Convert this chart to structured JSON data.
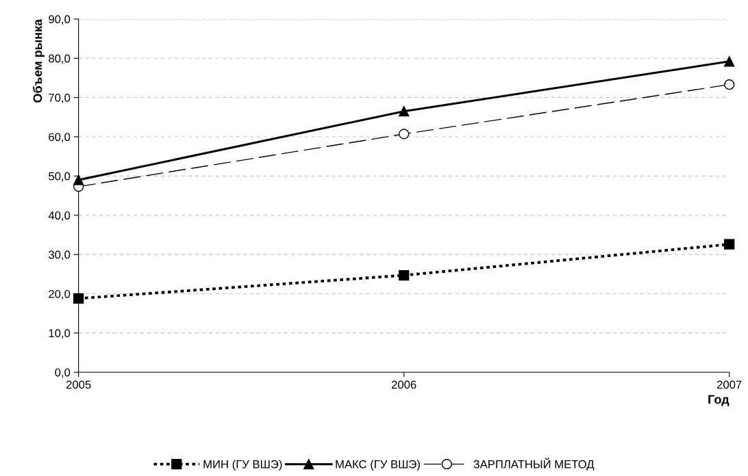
{
  "chart_data": {
    "type": "line",
    "xlabel": "Год",
    "ylabel": "Объем рынка",
    "x": [
      2005,
      2006,
      2007
    ],
    "series": [
      {
        "name": "МИН (ГУ ВШЭ)",
        "color": "#000000",
        "values": [
          18.8,
          24.7,
          32.6
        ],
        "marker": "square",
        "line_style": "dotted"
      },
      {
        "name": "МАКС (ГУ ВШЭ)",
        "color": "#000000",
        "values": [
          49.0,
          66.5,
          79.2
        ],
        "marker": "triangle",
        "line_style": "solid"
      },
      {
        "name": "ЗАРПЛАТНЫЙ МЕТОД",
        "color": "#000000",
        "values": [
          47.3,
          60.7,
          73.3
        ],
        "marker": "circle",
        "line_style": "dashed"
      }
    ],
    "xlim": [
      2005,
      2007
    ],
    "xticks": [
      2005,
      2006,
      2007
    ],
    "ylim": [
      0,
      90
    ],
    "yticks": [
      {
        "value": 0,
        "label": "0,0"
      },
      {
        "value": 10,
        "label": "10,0"
      },
      {
        "value": 20,
        "label": "20,0"
      },
      {
        "value": 30,
        "label": "30,0"
      },
      {
        "value": 40,
        "label": "40,0"
      },
      {
        "value": 50,
        "label": "50,0"
      },
      {
        "value": 60,
        "label": "60,0"
      },
      {
        "value": 70,
        "label": "70,0"
      },
      {
        "value": 80,
        "label": "80,0"
      },
      {
        "value": 90,
        "label": "90,0"
      }
    ],
    "grid": "y",
    "legend": "bottom"
  }
}
